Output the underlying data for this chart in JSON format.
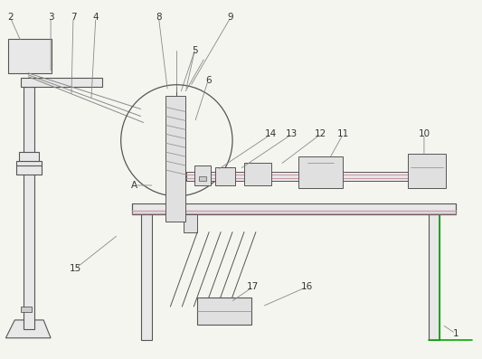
{
  "bg_color": "#f5f5f0",
  "line_color": "#555555",
  "line_color2": "#888888",
  "green_color": "#00aa00",
  "pink_color": "#cc99aa",
  "label_color": "#333333",
  "label_specs": [
    [
      "1",
      505,
      370,
      490,
      360
    ],
    [
      "2",
      10,
      18,
      22,
      45
    ],
    [
      "3",
      55,
      18,
      55,
      80
    ],
    [
      "4",
      105,
      18,
      100,
      110
    ],
    [
      "5",
      215,
      55,
      205,
      100
    ],
    [
      "6",
      230,
      88,
      215,
      135
    ],
    [
      "7",
      80,
      18,
      78,
      105
    ],
    [
      "8",
      175,
      18,
      185,
      100
    ],
    [
      "9",
      255,
      18,
      210,
      95
    ],
    [
      "10",
      470,
      148,
      470,
      172
    ],
    [
      "11",
      380,
      148,
      365,
      175
    ],
    [
      "12",
      355,
      148,
      310,
      182
    ],
    [
      "13",
      323,
      148,
      265,
      187
    ],
    [
      "14",
      300,
      148,
      240,
      188
    ],
    [
      "15",
      82,
      298,
      130,
      260
    ],
    [
      "16",
      340,
      318,
      290,
      340
    ],
    [
      "17",
      280,
      318,
      255,
      335
    ],
    [
      "A",
      148,
      205,
      170,
      205
    ]
  ]
}
